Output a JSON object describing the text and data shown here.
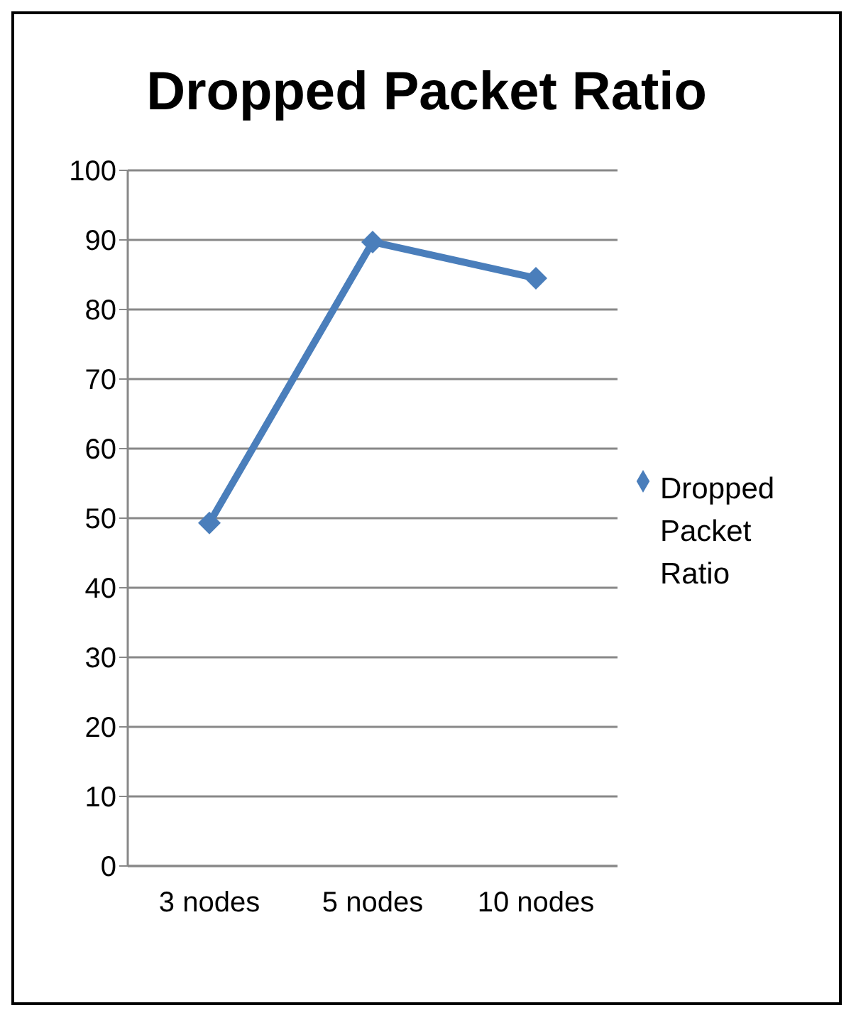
{
  "chart_data": {
    "type": "line",
    "title": "Dropped Packet Ratio",
    "categories": [
      "3 nodes",
      "5 nodes",
      "10 nodes"
    ],
    "series": [
      {
        "name": "Dropped Packet Ratio",
        "color": "#4a7ebb",
        "values": [
          49.3,
          89.7,
          84.5
        ]
      }
    ],
    "ylim": [
      0,
      100
    ],
    "yticks": [
      0,
      10,
      20,
      30,
      40,
      50,
      60,
      70,
      80,
      90,
      100
    ],
    "grid": "y",
    "legend": "right",
    "marker": "diamond",
    "line_style": "solid"
  }
}
